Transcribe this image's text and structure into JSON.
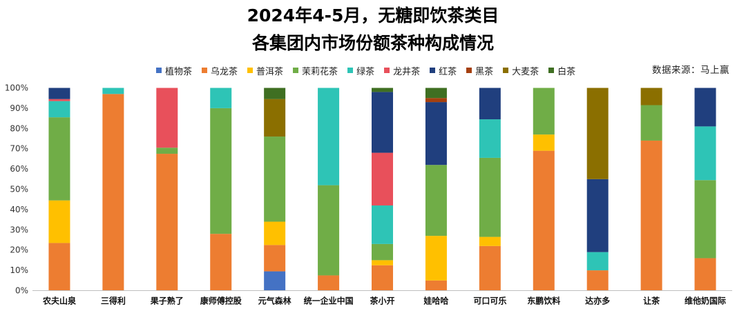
{
  "header": {
    "title_line1": "2024年4-5月，无糖即饮茶类目",
    "title_line2": "各集团内市场份额茶种构成情况",
    "source": "数据来源：马上赢"
  },
  "chart_data": {
    "type": "bar",
    "stacked": true,
    "normalized": true,
    "title": "2024年4-5月，无糖即饮茶类目 各集团内市场份额茶种构成情况",
    "xlabel": "",
    "ylabel": "",
    "ylim": [
      0,
      100
    ],
    "y_ticks": [
      "0%",
      "10%",
      "20%",
      "30%",
      "40%",
      "50%",
      "60%",
      "70%",
      "80%",
      "90%",
      "100%"
    ],
    "grid": false,
    "legend_position": "top",
    "categories": [
      "农夫山泉",
      "三得利",
      "果子熟了",
      "康师傅控股",
      "元气森林",
      "统一企业中国",
      "茶小开",
      "娃哈哈",
      "可口可乐",
      "东鹏饮料",
      "达亦多",
      "让茶",
      "维他奶国际"
    ],
    "series": [
      {
        "name": "植物茶",
        "color": "#4472C4",
        "values": [
          0,
          0,
          0,
          0,
          9.5,
          0,
          0,
          0,
          0,
          0,
          0,
          0,
          0
        ]
      },
      {
        "name": "乌龙茶",
        "color": "#ED7D31",
        "values": [
          23.5,
          97,
          67.5,
          28,
          13,
          7.5,
          12.5,
          5,
          22,
          69,
          10,
          74,
          16
        ]
      },
      {
        "name": "普洱茶",
        "color": "#FFC000",
        "values": [
          21,
          0,
          0,
          0,
          11.5,
          0,
          2.5,
          22,
          4.5,
          8,
          0,
          0,
          0
        ]
      },
      {
        "name": "茉莉花茶",
        "color": "#70AD47",
        "values": [
          41,
          0,
          3,
          62,
          42,
          44.5,
          8,
          35,
          39,
          23,
          0,
          17.5,
          38.5
        ]
      },
      {
        "name": "绿茶",
        "color": "#2EC4B6",
        "values": [
          8,
          3,
          0,
          10,
          0,
          48,
          19,
          0,
          19,
          0,
          9,
          0,
          26.5
        ]
      },
      {
        "name": "龙井茶",
        "color": "#E8505B",
        "values": [
          1,
          0,
          29.5,
          0,
          0,
          0,
          26,
          0,
          0,
          0,
          0,
          0,
          0
        ]
      },
      {
        "name": "红茶",
        "color": "#203F7E",
        "values": [
          5.5,
          0,
          0,
          0,
          0,
          0,
          30,
          31,
          15.5,
          0,
          36,
          0,
          19
        ]
      },
      {
        "name": "黑茶",
        "color": "#A5400F",
        "values": [
          0,
          0,
          0,
          0,
          0,
          0,
          0,
          2,
          0,
          0,
          0,
          0,
          0
        ]
      },
      {
        "name": "大麦茶",
        "color": "#8B6F00",
        "values": [
          0,
          0,
          0,
          0,
          18.5,
          0,
          0,
          0,
          0,
          0,
          45,
          8.5,
          0
        ]
      },
      {
        "name": "白茶",
        "color": "#3F6F22",
        "values": [
          0,
          0,
          0,
          0,
          5.5,
          0,
          2,
          5,
          0,
          0,
          0,
          0,
          0
        ]
      }
    ]
  }
}
